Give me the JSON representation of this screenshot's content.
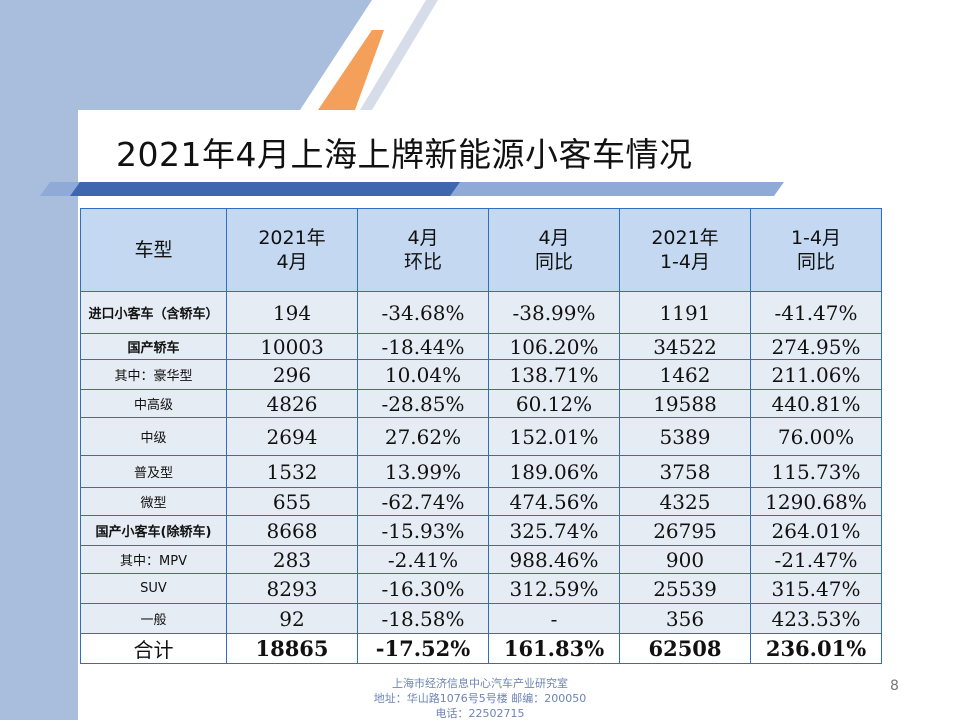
{
  "title": "2021年4月上海上牌新能源小客车情况",
  "colors": {
    "header_fill": "#c4d9f1",
    "row_fill": "#e6ecf4",
    "border": "#2f6fbf",
    "accent_orange": "#f5a05a",
    "sidebar_blue": "#a9bedd"
  },
  "table": {
    "headers": [
      {
        "line1": "车型",
        "line2": ""
      },
      {
        "line1": "2021年",
        "line2": "4月"
      },
      {
        "line1": "4月",
        "line2": "环比"
      },
      {
        "line1": "4月",
        "line2": "同比"
      },
      {
        "line1": "2021年",
        "line2": "1-4月"
      },
      {
        "line1": "1-4月",
        "line2": "同比"
      }
    ],
    "rows": [
      {
        "label": "进口小客车（含轿车）",
        "cells": [
          "194",
          "-34.68%",
          "-38.99%",
          "1191",
          "-41.47%"
        ]
      },
      {
        "label": "国产轿车",
        "cells": [
          "10003",
          "-18.44%",
          "106.20%",
          "34522",
          "274.95%"
        ]
      },
      {
        "label": "其中：豪华型",
        "cells": [
          "296",
          "10.04%",
          "138.71%",
          "1462",
          "211.06%"
        ]
      },
      {
        "label": "中高级",
        "cells": [
          "4826",
          "-28.85%",
          "60.12%",
          "19588",
          "440.81%"
        ]
      },
      {
        "label": "中级",
        "cells": [
          "2694",
          "27.62%",
          "152.01%",
          "5389",
          "76.00%"
        ]
      },
      {
        "label": "普及型",
        "cells": [
          "1532",
          "13.99%",
          "189.06%",
          "3758",
          "115.73%"
        ]
      },
      {
        "label": "微型",
        "cells": [
          "655",
          "-62.74%",
          "474.56%",
          "4325",
          "1290.68%"
        ]
      },
      {
        "label": "国产小客车(除轿车)",
        "cells": [
          "8668",
          "-15.93%",
          "325.74%",
          "26795",
          "264.01%"
        ]
      },
      {
        "label": "其中：MPV",
        "cells": [
          "283",
          "-2.41%",
          "988.46%",
          "900",
          "-21.47%"
        ]
      },
      {
        "label": "SUV",
        "cells": [
          "8293",
          "-16.30%",
          "312.59%",
          "25539",
          "315.47%"
        ]
      },
      {
        "label": "一般",
        "cells": [
          "92",
          "-18.58%",
          "-",
          "356",
          "423.53%"
        ]
      },
      {
        "label": "合计",
        "cells": [
          "18865",
          "-17.52%",
          "161.83%",
          "62508",
          "236.01%"
        ]
      }
    ]
  },
  "footer": {
    "line1": "上海市经济信息中心汽车产业研究室",
    "line2": "地址：华山路1076号5号楼    邮编：200050",
    "line3": "电话：22502715"
  },
  "page_number": "8"
}
